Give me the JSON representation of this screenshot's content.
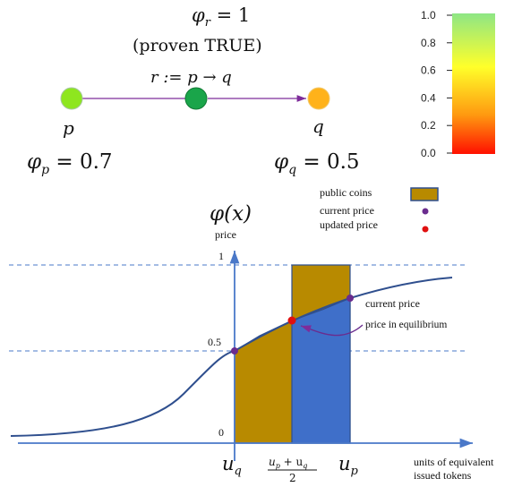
{
  "top_diagram": {
    "phi_r_label": "φ",
    "phi_r_sub": "r",
    "phi_r_value": " = 1",
    "proven_label": "(proven TRUE)",
    "rule_label": "r := p → q",
    "node_p_label": "p",
    "node_q_label": "q",
    "phi_p_label": "φ",
    "phi_p_sub": "p",
    "phi_p_value": " = 0.7",
    "phi_q_label": "φ",
    "phi_q_sub": "q",
    "phi_q_value": " = 0.5",
    "colors": {
      "p": "#8ee61f",
      "mid": "#1aa54a",
      "q": "#ffb21a",
      "edge": "#7e2c9a"
    }
  },
  "colorbar": {
    "ticks": [
      "1.0",
      "0.8",
      "0.6",
      "0.4",
      "0.2",
      "0.0"
    ],
    "gradient": [
      "#8ee685",
      "#ffff2a",
      "#ff9a10",
      "#ff1000"
    ]
  },
  "plot": {
    "function_label": "φ(x)",
    "ylabel": "price",
    "y_tick_1": "1",
    "y_tick_05": "0.5",
    "y_tick_0": "0",
    "x_u_q_main": "u",
    "x_u_q_sub": "q",
    "x_u_p_main": "u",
    "x_u_p_sub": "p",
    "x_mid_num": "u",
    "x_mid_num_sub1": "p",
    "x_mid_plus": " + u",
    "x_mid_num_sub2": "q",
    "x_mid_den": "2",
    "xlabel_line1": "units of equivalent",
    "xlabel_line2": "issued tokens",
    "annot_current_price": "current price",
    "annot_equilibrium": "price in equilibrium",
    "legend": {
      "public_coins": "public coins",
      "current_price": "current price",
      "updated_price": "updated price"
    },
    "colors": {
      "gold": "#b88a00",
      "blue": "#3f6fc9",
      "curve": "#2f4f8e",
      "axis": "#4a78c8",
      "purple": "#6a2c8e",
      "red": "#e01010"
    }
  }
}
